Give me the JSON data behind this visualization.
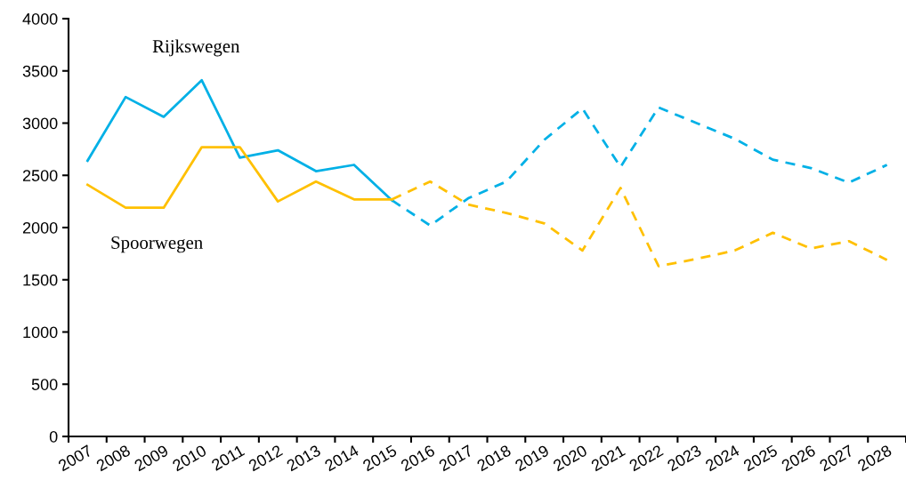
{
  "chart_data": {
    "type": "line",
    "categories": [
      "2007",
      "2008",
      "2009",
      "2010",
      "2011",
      "2012",
      "2013",
      "2014",
      "2015",
      "2016",
      "2017",
      "2018",
      "2019",
      "2020",
      "2021",
      "2022",
      "2023",
      "2024",
      "2025",
      "2026",
      "2027",
      "2028"
    ],
    "series": [
      {
        "name": "Rijkswegen",
        "color": "#00b0e6",
        "line_style": "solid",
        "values": [
          2640,
          3250,
          3060,
          3410,
          2670,
          2740,
          2540,
          2600,
          2260,
          null,
          null,
          null,
          null,
          null,
          null,
          null,
          null,
          null,
          null,
          null,
          null,
          null
        ]
      },
      {
        "color": "#00b0e6",
        "line_style": "dashed",
        "values": [
          null,
          null,
          null,
          null,
          null,
          null,
          null,
          null,
          2260,
          2020,
          2280,
          2440,
          2840,
          3140,
          2580,
          3150,
          3000,
          2850,
          2650,
          2570,
          2430,
          2600
        ]
      },
      {
        "name": "Spoorwegen",
        "color": "#ffc000",
        "line_style": "solid",
        "values": [
          2410,
          2190,
          2190,
          2770,
          2770,
          2250,
          2440,
          2270,
          2270,
          null,
          null,
          null,
          null,
          null,
          null,
          null,
          null,
          null,
          null,
          null,
          null,
          null
        ]
      },
      {
        "color": "#ffc000",
        "line_style": "dashed",
        "values": [
          null,
          null,
          null,
          null,
          null,
          null,
          null,
          null,
          2270,
          2440,
          2220,
          2140,
          2040,
          1780,
          2380,
          1630,
          1700,
          1780,
          1950,
          1800,
          1870,
          1690
        ]
      }
    ],
    "ylim": [
      0,
      4000
    ],
    "yticks": [
      0,
      500,
      1000,
      1500,
      2000,
      2500,
      3000,
      3500,
      4000
    ],
    "grid": false,
    "legend": false,
    "marker": "none"
  }
}
